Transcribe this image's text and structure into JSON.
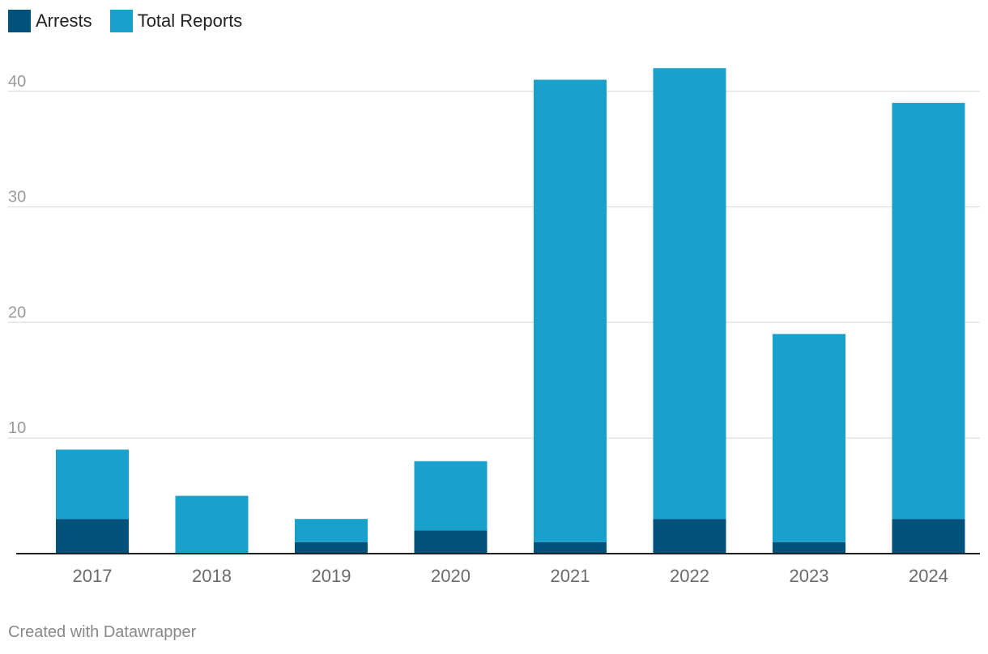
{
  "chart_data": {
    "type": "bar",
    "stacked": true,
    "categories": [
      "2017",
      "2018",
      "2019",
      "2020",
      "2021",
      "2022",
      "2023",
      "2024"
    ],
    "series": [
      {
        "name": "Arrests",
        "values": [
          3,
          0,
          1,
          2,
          1,
          3,
          1,
          3
        ],
        "color": "#00527a"
      },
      {
        "name": "Total Reports",
        "values": [
          6,
          5,
          2,
          6,
          40,
          39,
          18,
          36
        ],
        "color": "#18a1cd"
      }
    ],
    "totals": [
      9,
      5,
      3,
      8,
      41,
      42,
      19,
      39
    ],
    "yticks": [
      10,
      20,
      30,
      40
    ],
    "ylim": [
      0,
      42
    ],
    "grid": true,
    "legend_position": "top-left"
  },
  "legend": {
    "items": [
      {
        "label": "Arrests",
        "color": "#00527a"
      },
      {
        "label": "Total Reports",
        "color": "#18a1cd"
      }
    ]
  },
  "footer": {
    "credit": "Created with Datawrapper"
  }
}
